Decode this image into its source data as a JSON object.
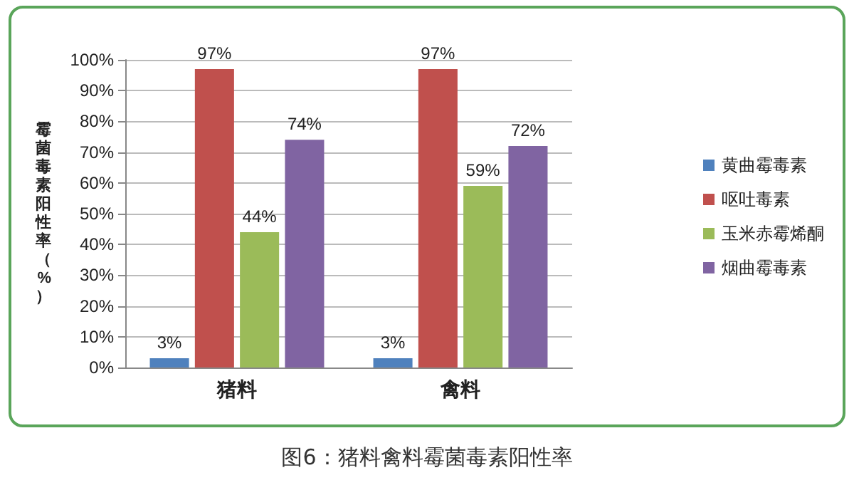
{
  "chart_data": {
    "type": "bar",
    "ylabel": "霉菌毒素阳性率（%）",
    "categories": [
      "猪料",
      "禽料"
    ],
    "series": [
      {
        "name": "黄曲霉毒素",
        "color": "#4f81bd",
        "values": [
          3,
          3
        ],
        "value_labels": [
          "3%",
          "3%"
        ]
      },
      {
        "name": "呕吐毒素",
        "color": "#c0504d",
        "values": [
          97,
          97
        ],
        "value_labels": [
          "97%",
          "97%"
        ]
      },
      {
        "name": "玉米赤霉烯酮",
        "color": "#9bbb59",
        "values": [
          44,
          59
        ],
        "value_labels": [
          "44%",
          "59%"
        ]
      },
      {
        "name": "烟曲霉毒素",
        "color": "#8064a2",
        "values": [
          74,
          72
        ],
        "value_labels": [
          "74%",
          "72%"
        ]
      }
    ],
    "ylim": [
      0,
      100
    ],
    "yticks": [
      {
        "value": 0,
        "label": "0%"
      },
      {
        "value": 10,
        "label": "10%"
      },
      {
        "value": 20,
        "label": "20%"
      },
      {
        "value": 30,
        "label": "30%"
      },
      {
        "value": 40,
        "label": "40%"
      },
      {
        "value": 50,
        "label": "50%"
      },
      {
        "value": 60,
        "label": "60%"
      },
      {
        "value": 70,
        "label": "70%"
      },
      {
        "value": 80,
        "label": "80%"
      },
      {
        "value": 90,
        "label": "90%"
      },
      {
        "value": 100,
        "label": "100%"
      }
    ],
    "grid": "y",
    "legend": "right",
    "annotations": [
      "图6：猪料禽料霉菌毒素阳性率"
    ]
  }
}
